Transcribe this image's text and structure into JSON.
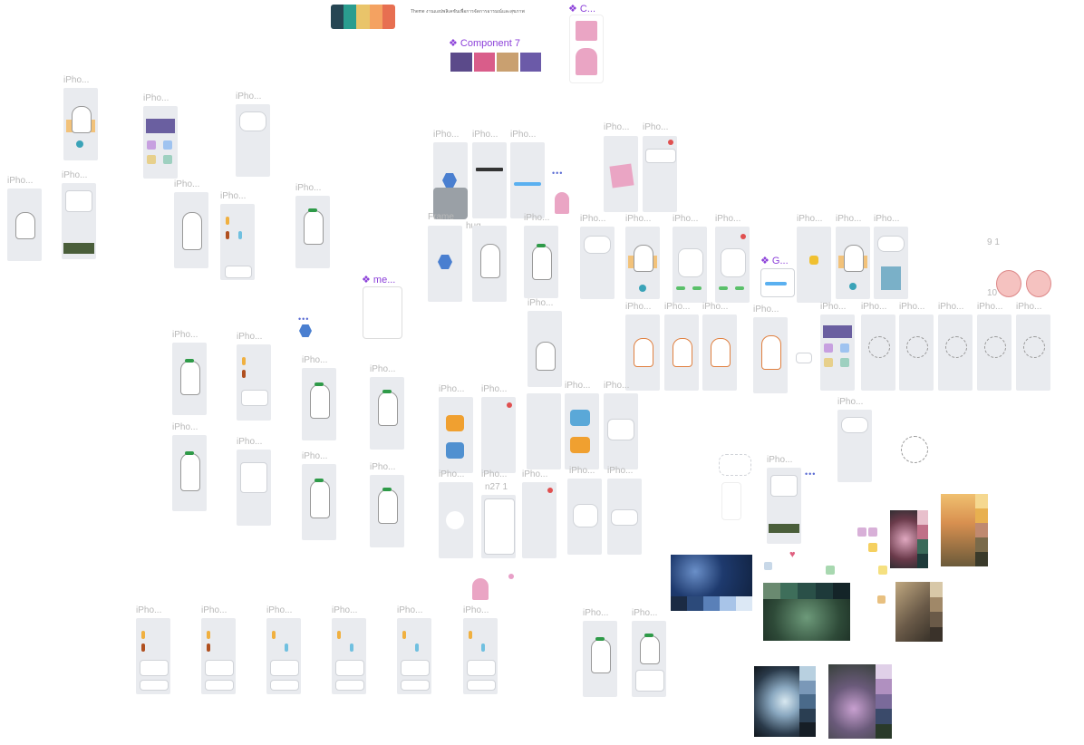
{
  "palette": {
    "colors": [
      "#264653",
      "#2a9d8f",
      "#e9c46a",
      "#f4a261",
      "#e76f51"
    ]
  },
  "header_note": "Theme งานแอปพลิเคชันเพื่อการจัดการอารมณ์และสุขภาพ",
  "components": {
    "c7": "❖ Component 7",
    "c_short": "❖ C...",
    "me": "❖ me...",
    "g": "❖ G..."
  },
  "labels": {
    "iphone": "iPho...",
    "frame": "Frame",
    "hug": "hug",
    "n27": "n27 1",
    "nine_one": "9 1",
    "ten": "10"
  },
  "icons": {
    "diamond": "❖",
    "dots": "•••"
  }
}
